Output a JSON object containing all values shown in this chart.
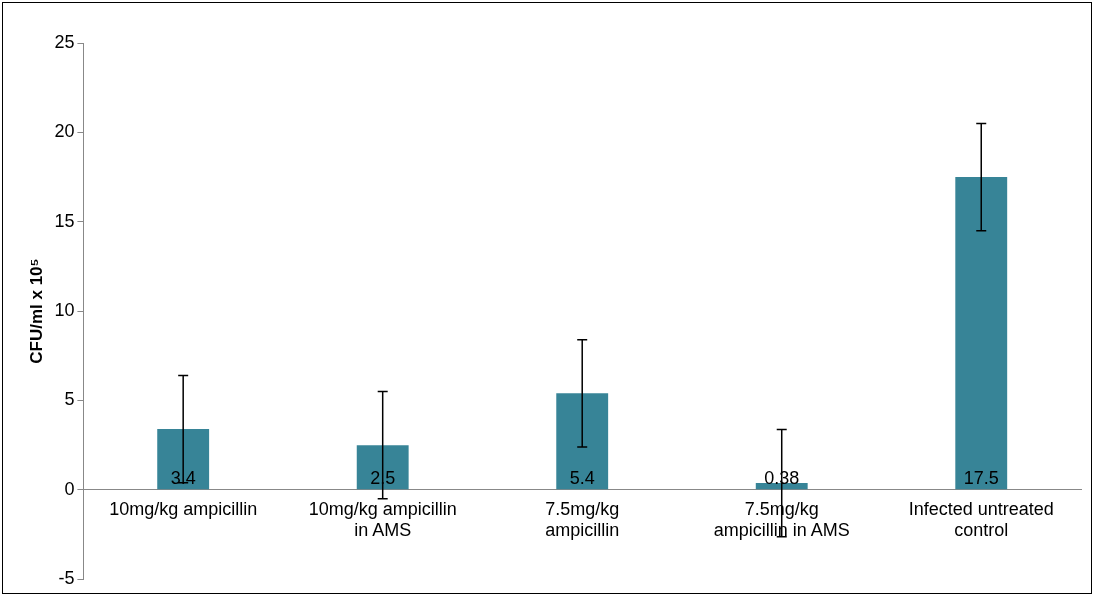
{
  "chart_data": {
    "type": "bar",
    "ylabel": "CFU/ml x 10⁵",
    "categories": [
      "10mg/kg ampicillin",
      "10mg/kg ampicillin in AMS",
      "7.5mg/kg ampicillin",
      "7.5mg/kg ampicillin in AMS",
      "Infected untreated control"
    ],
    "values": [
      3.4,
      2.5,
      5.4,
      0.38,
      17.5
    ],
    "errors": [
      3,
      3,
      3,
      3,
      3
    ],
    "color": "#378497",
    "ylim": [
      -5,
      25
    ],
    "yticks": [
      -5,
      0,
      5,
      10,
      15,
      20,
      25
    ],
    "grid": false,
    "legend": false,
    "data_labels": true
  }
}
